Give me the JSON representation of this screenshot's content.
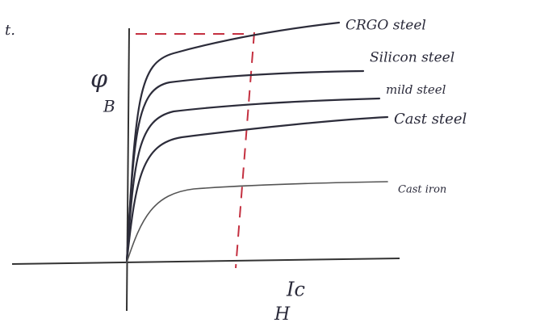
{
  "corner_note": "t.",
  "axes": {
    "y_symbol": "φ",
    "y_label": "B",
    "x_marker": "Ic",
    "x_label": "H"
  },
  "curves": [
    {
      "label": "CRGO steel"
    },
    {
      "label": "Silicon steel"
    },
    {
      "label": "mild steel"
    },
    {
      "label": "Cast steel"
    },
    {
      "label": "Cast iron"
    }
  ]
}
